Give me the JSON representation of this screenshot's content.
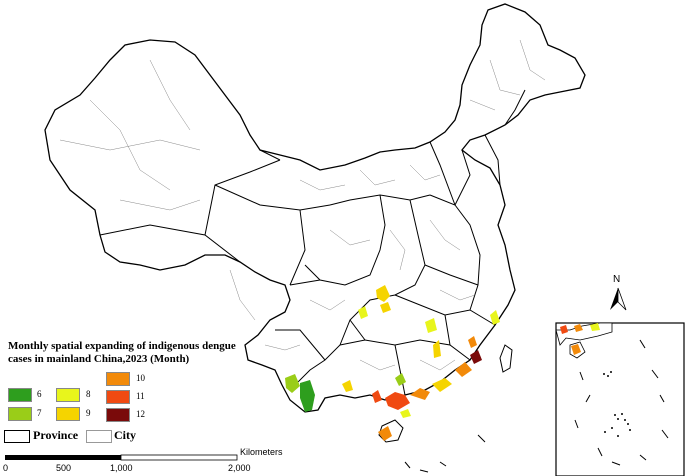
{
  "legend": {
    "title": "Monthly spatial expanding of indigenous dengue cases in mainland China,2023 (Month)",
    "months": [
      {
        "label": "6",
        "color": "#2e9e1e"
      },
      {
        "label": "7",
        "color": "#9acd18"
      },
      {
        "label": "8",
        "color": "#e8f51c"
      },
      {
        "label": "9",
        "color": "#f5d400"
      },
      {
        "label": "10",
        "color": "#f28a0a"
      },
      {
        "label": "11",
        "color": "#f04a12"
      },
      {
        "label": "12",
        "color": "#7a0a0a"
      }
    ],
    "province_label": "Province",
    "city_label": "City"
  },
  "scale_bar": {
    "unit": "Kilometers",
    "ticks": [
      "0",
      "500",
      "1,000",
      "2,000"
    ]
  },
  "north_label": "N"
}
